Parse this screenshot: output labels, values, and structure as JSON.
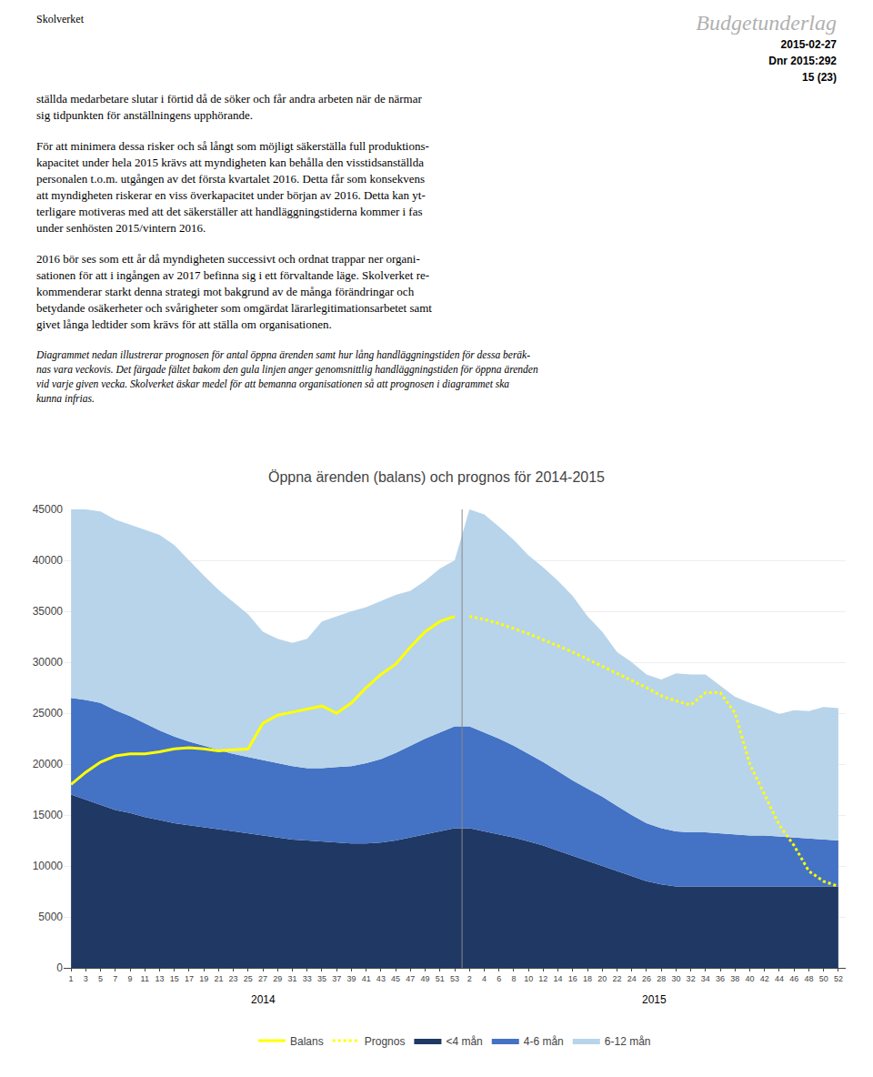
{
  "header": {
    "left": "Skolverket",
    "right": [
      "Budgetunderlag",
      "2015-02-27",
      "Dnr 2015:292",
      "15 (23)"
    ]
  },
  "paragraphs": [
    "ställda medarbetare slutar i förtid då de söker och får andra arbeten när de närmar\nsig tidpunkten för anställningens upphörande.",
    "För att minimera dessa risker och så långt som möjligt säkerställa full produktions-\nkapacitet under hela 2015 krävs att myndigheten kan behålla den visstidsanställda\npersonalen t.o.m. utgången av det första kvartalet 2016. Detta får som konsekvens\natt myndigheten riskerar en viss överkapacitet under början av 2016. Detta kan yt-\nterligare motiveras med att det säkerställer att handläggningstiderna kommer i fas\nunder senhösten 2015/vintern 2016.",
    "2016 bör ses som ett år då myndigheten successivt och ordnat trappar ner organi-\nsationen för att i ingången av 2017 befinna sig i ett förvaltande läge. Skolverket re-\nkommenderar starkt denna strategi mot bakgrund av de många förändringar och\nbetydande osäkerheter och svårigheter som omgärdat lärarlegitimationsarbetet samt\ngivet långa ledtider som krävs för att ställa om organisationen.",
    "Diagrammet nedan illustrerar prognosen för antal öppna ärenden samt hur lång handläggningstiden för dessa beräk-\nnas vara veckovis. Det färgade fältet bakom den gula linjen anger genomsnittlig handläggningstiden för öppna ärenden\nvid varje given vecka. Skolverket äskar medel för att bemanna organisationen så att prognosen i diagrammet ska\nkunna infrias."
  ],
  "chart_data": {
    "type": "area",
    "stacked": true,
    "title": "Öppna ärenden (balans) och prognos för 2014-2015",
    "categories": [
      "1",
      "3",
      "5",
      "7",
      "9",
      "11",
      "13",
      "15",
      "17",
      "19",
      "21",
      "23",
      "25",
      "27",
      "29",
      "31",
      "33",
      "35",
      "37",
      "39",
      "41",
      "43",
      "45",
      "47",
      "49",
      "51",
      "53",
      "2",
      "4",
      "6",
      "8",
      "10",
      "12",
      "14",
      "16",
      "18",
      "20",
      "22",
      "24",
      "26",
      "28",
      "30",
      "32",
      "34",
      "36",
      "38",
      "40",
      "42",
      "44",
      "46",
      "48",
      "50",
      "52"
    ],
    "series": [
      {
        "name": "6-12 mån",
        "type": "area",
        "color": "#b8d4ea",
        "values": [
          18500,
          18700,
          18800,
          18700,
          18800,
          19000,
          19200,
          18800,
          17800,
          16700,
          15700,
          14900,
          14000,
          12600,
          12200,
          12100,
          12700,
          14400,
          14800,
          15200,
          15300,
          15500,
          15500,
          15200,
          15500,
          16100,
          16300,
          21300,
          21400,
          20800,
          20200,
          19500,
          19100,
          18700,
          18100,
          16900,
          16200,
          15100,
          15000,
          14600,
          14600,
          15500,
          15500,
          15500,
          14500,
          13500,
          13000,
          12500,
          12000,
          12500,
          12500,
          13000,
          13000
        ]
      },
      {
        "name": "4-6 mån",
        "type": "area",
        "color": "#4472c4",
        "values": [
          9500,
          9800,
          10000,
          9800,
          9500,
          9200,
          8800,
          8500,
          8200,
          8000,
          7800,
          7600,
          7500,
          7400,
          7300,
          7200,
          7100,
          7200,
          7400,
          7600,
          7900,
          8200,
          8600,
          9000,
          9400,
          9700,
          10000,
          10000,
          9700,
          9400,
          9000,
          8600,
          8200,
          7800,
          7400,
          7100,
          6800,
          6400,
          6000,
          5700,
          5500,
          5400,
          5300,
          5300,
          5200,
          5100,
          5000,
          5000,
          4900,
          4800,
          4700,
          4600,
          4500
        ]
      },
      {
        "name": "<4 mån",
        "type": "area",
        "color": "#1f3864",
        "values": [
          17000,
          16500,
          16000,
          15500,
          15200,
          14800,
          14500,
          14200,
          14000,
          13800,
          13600,
          13400,
          13200,
          13000,
          12800,
          12600,
          12500,
          12400,
          12300,
          12200,
          12200,
          12300,
          12500,
          12800,
          13100,
          13400,
          13700,
          13700,
          13400,
          13100,
          12800,
          12400,
          12000,
          11500,
          11000,
          10500,
          10000,
          9500,
          9000,
          8500,
          8200,
          8000,
          8000,
          8000,
          8000,
          8000,
          8000,
          8000,
          8000,
          8000,
          8000,
          8000,
          8000
        ]
      },
      {
        "name": "Prognos",
        "type": "line",
        "line_style": "dotted",
        "color": "#ffff00",
        "values": [
          null,
          null,
          null,
          null,
          null,
          null,
          null,
          null,
          null,
          null,
          null,
          null,
          null,
          null,
          null,
          null,
          null,
          null,
          null,
          null,
          null,
          null,
          null,
          null,
          null,
          null,
          null,
          34500,
          34200,
          33800,
          33300,
          32800,
          32200,
          31600,
          31000,
          30300,
          29600,
          28900,
          28200,
          27500,
          26700,
          26200,
          25800,
          27000,
          27000,
          25000,
          20000,
          17000,
          14000,
          12000,
          9500,
          8500,
          8000
        ]
      },
      {
        "name": "Balans",
        "type": "line",
        "line_style": "solid",
        "color": "#ffff00",
        "values": [
          18000,
          19200,
          20200,
          20800,
          21000,
          21000,
          21200,
          21500,
          21600,
          21500,
          21300,
          21400,
          21500,
          24000,
          24800,
          25100,
          25400,
          25700,
          25000,
          26000,
          27500,
          28800,
          29800,
          31500,
          33000,
          34000,
          34500,
          null,
          null,
          null,
          null,
          null,
          null,
          null,
          null,
          null,
          null,
          null,
          null,
          null,
          null,
          null,
          null,
          null,
          null,
          null,
          null,
          null,
          null,
          null,
          null,
          null,
          null
        ]
      }
    ],
    "annotations": [
      {
        "text": "2014",
        "x": 13
      },
      {
        "text": "2015",
        "x": 39.5
      }
    ],
    "ylim": [
      0,
      45000
    ],
    "yticks": [
      0,
      5000,
      10000,
      15000,
      20000,
      25000,
      30000,
      35000,
      40000,
      45000
    ],
    "grid": true,
    "legend": "bottom"
  }
}
